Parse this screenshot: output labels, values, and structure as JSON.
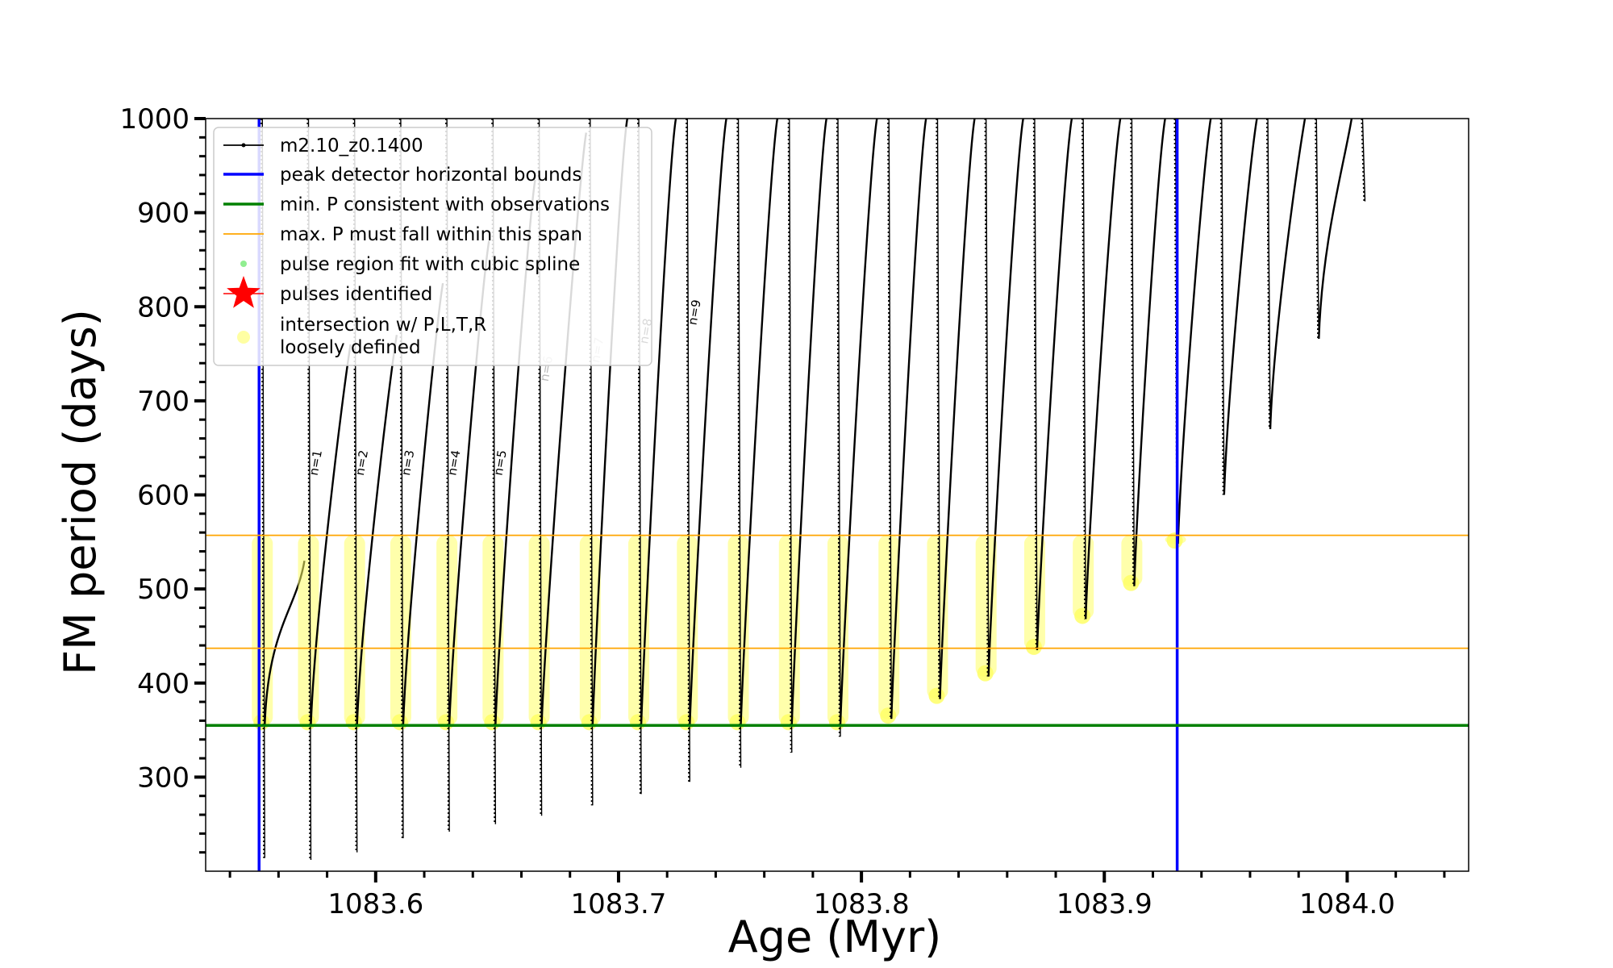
{
  "chart_data": {
    "type": "scatter",
    "title": "",
    "xlabel": "Age (Myr)",
    "ylabel": "FM period (days)",
    "xlim": [
      1083.53,
      1084.05
    ],
    "ylim": [
      200,
      1000
    ],
    "xticks": [
      1083.6,
      1083.7,
      1083.8,
      1083.9,
      1084.0
    ],
    "xtick_labels": [
      "1083.6",
      "1083.7",
      "1083.8",
      "1083.9",
      "1084.0"
    ],
    "yticks": [
      300,
      400,
      500,
      600,
      700,
      800,
      900,
      1000
    ],
    "ytick_labels": [
      "300",
      "400",
      "500",
      "600",
      "700",
      "800",
      "900",
      "1000"
    ],
    "grid": false,
    "legend_position": "top-left",
    "vertical_lines": [
      1083.552,
      1083.93
    ],
    "min_period": 355,
    "max_period_span": [
      437,
      557
    ],
    "colors": {
      "track": "#000000",
      "bounds": "#0000ff",
      "min_p": "#008000",
      "max_p": "#ffa500",
      "spline": "#90ee90",
      "pulse": "#ff0000",
      "intersection": "#ffff66"
    },
    "legend": [
      {
        "label": "m2.10_z0.1400",
        "kind": "line-dot",
        "color": "#000000"
      },
      {
        "label": "peak detector horizontal bounds",
        "kind": "line",
        "color": "#0000ff"
      },
      {
        "label": "min. P consistent with observations",
        "kind": "line",
        "color": "#008000"
      },
      {
        "label": "max. P must fall within this span",
        "kind": "line-thin",
        "color": "#ffa500"
      },
      {
        "label": "pulse region fit with cubic spline",
        "kind": "dot",
        "color": "#90ee90"
      },
      {
        "label": "pulses identified",
        "kind": "star",
        "color": "#ff0000"
      },
      {
        "label": "intersection w/ P,L,T,R",
        "label2": "loosely defined",
        "kind": "circle",
        "color": "#ffff66"
      }
    ],
    "pulses": [
      {
        "x": 1083.553,
        "min": 214,
        "peak": 530,
        "label": ""
      },
      {
        "x": 1083.572,
        "min": 212,
        "peak": 760,
        "label": "n=1"
      },
      {
        "x": 1083.591,
        "min": 220,
        "peak": 770,
        "label": "n=2"
      },
      {
        "x": 1083.61,
        "min": 235,
        "peak": 825,
        "label": "n=3"
      },
      {
        "x": 1083.629,
        "min": 242,
        "peak": 870,
        "label": "n=4"
      },
      {
        "x": 1083.648,
        "min": 250,
        "peak": 935,
        "label": "n=5"
      },
      {
        "x": 1083.667,
        "min": 259,
        "peak": 985,
        "label": "n=6"
      },
      {
        "x": 1083.688,
        "min": 270,
        "peak": 1000,
        "label": "n=7"
      },
      {
        "x": 1083.708,
        "min": 282,
        "peak": 1000,
        "label": "n=8"
      },
      {
        "x": 1083.728,
        "min": 295,
        "peak": 1000,
        "label": "n=9"
      },
      {
        "x": 1083.749,
        "min": 310,
        "peak": 1000,
        "label": ""
      },
      {
        "x": 1083.77,
        "min": 326,
        "peak": 1000,
        "label": ""
      },
      {
        "x": 1083.79,
        "min": 343,
        "peak": 1000,
        "label": ""
      },
      {
        "x": 1083.811,
        "min": 362,
        "peak": 1000,
        "label": ""
      },
      {
        "x": 1083.831,
        "min": 383,
        "peak": 1000,
        "label": ""
      },
      {
        "x": 1083.851,
        "min": 407,
        "peak": 1000,
        "label": ""
      },
      {
        "x": 1083.871,
        "min": 435,
        "peak": 1000,
        "label": ""
      },
      {
        "x": 1083.891,
        "min": 468,
        "peak": 1000,
        "label": ""
      },
      {
        "x": 1083.911,
        "min": 503,
        "peak": 1000,
        "label": ""
      },
      {
        "x": 1083.929,
        "min": 548,
        "peak": 1000,
        "label": ""
      },
      {
        "x": 1083.948,
        "min": 600,
        "peak": 1000,
        "label": ""
      },
      {
        "x": 1083.967,
        "min": 670,
        "peak": 1000,
        "label": ""
      },
      {
        "x": 1083.987,
        "min": 766,
        "peak": 1000,
        "label": ""
      },
      {
        "x": 1084.006,
        "min": 912,
        "peak": 1000,
        "label": ""
      }
    ]
  }
}
